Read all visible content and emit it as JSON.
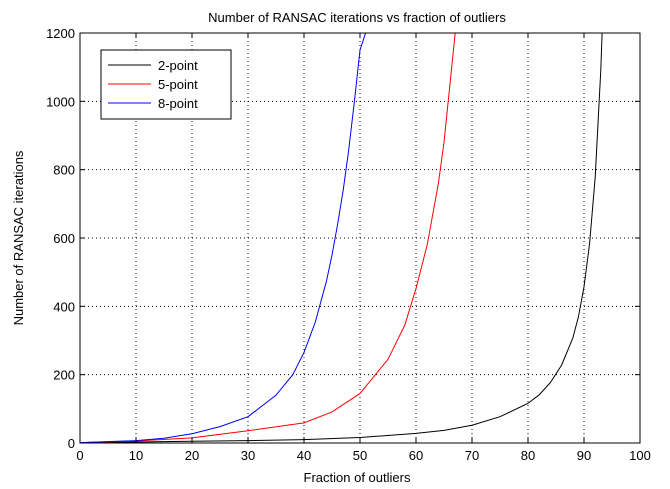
{
  "chart_data": {
    "type": "line",
    "title": "Number of RANSAC iterations vs fraction of outliers",
    "xlabel": "Fraction of outliers",
    "ylabel": "Number of RANSAC iterations",
    "xlim": [
      0,
      100
    ],
    "ylim": [
      0,
      1200
    ],
    "xticks": [
      0,
      10,
      20,
      30,
      40,
      50,
      60,
      70,
      80,
      90,
      100
    ],
    "yticks": [
      0,
      200,
      400,
      600,
      800,
      1000,
      1200
    ],
    "grid": true,
    "legend_position": "top-left",
    "series": [
      {
        "name": "2-point",
        "color": "#000000",
        "x": [
          0,
          10,
          20,
          30,
          40,
          50,
          60,
          65,
          70,
          75,
          80,
          82,
          84,
          86,
          88,
          89,
          90,
          91,
          92,
          93,
          93.5,
          94
        ],
        "y": [
          1,
          3,
          5,
          7,
          10,
          16,
          28,
          37,
          52,
          77,
          116,
          141,
          177,
          228,
          307,
          369,
          457,
          584,
          778,
          1092,
          1323,
          1200
        ]
      },
      {
        "name": "5-point",
        "color": "#ff0000",
        "x": [
          0,
          10,
          20,
          30,
          40,
          45,
          50,
          55,
          58,
          60,
          62,
          64,
          65,
          66,
          67
        ],
        "y": [
          1,
          6,
          15,
          36,
          59,
          91,
          145,
          245,
          345,
          452,
          580,
          760,
          880,
          1040,
          1200
        ]
      },
      {
        "name": "8-point",
        "color": "#0000ff",
        "x": [
          0,
          10,
          15,
          20,
          25,
          30,
          35,
          38,
          40,
          42,
          44,
          45,
          46,
          47,
          48,
          49,
          50,
          51
        ],
        "y": [
          1,
          7,
          14,
          27,
          48,
          77,
          140,
          200,
          265,
          353,
          473,
          550,
          640,
          740,
          860,
          1000,
          1150,
          1200
        ]
      }
    ]
  }
}
